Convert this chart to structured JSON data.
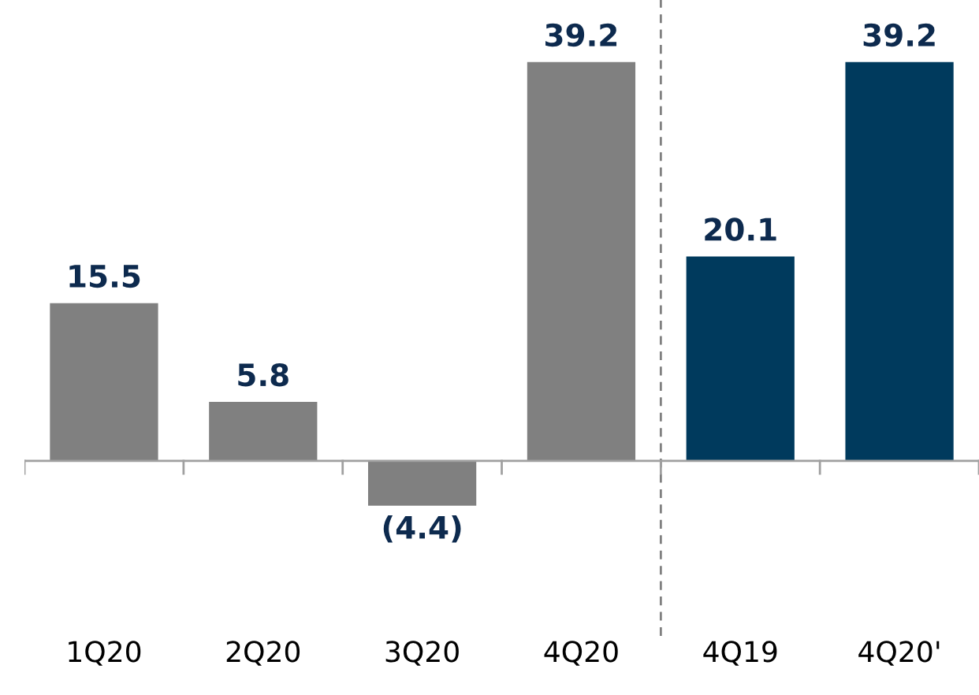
{
  "chart_data": {
    "type": "bar",
    "categories": [
      "1Q20",
      "2Q20",
      "3Q20",
      "4Q20",
      "4Q19",
      "4Q20'"
    ],
    "values": [
      15.5,
      5.8,
      -4.4,
      39.2,
      20.1,
      39.2
    ],
    "colors": [
      "#808080",
      "#808080",
      "#808080",
      "#808080",
      "#003a5d",
      "#003a5d"
    ],
    "value_labels": [
      "15.5",
      "5.8",
      "(4.4)",
      "39.2",
      "20.1",
      "39.2"
    ],
    "grid": false,
    "legend": false
  }
}
